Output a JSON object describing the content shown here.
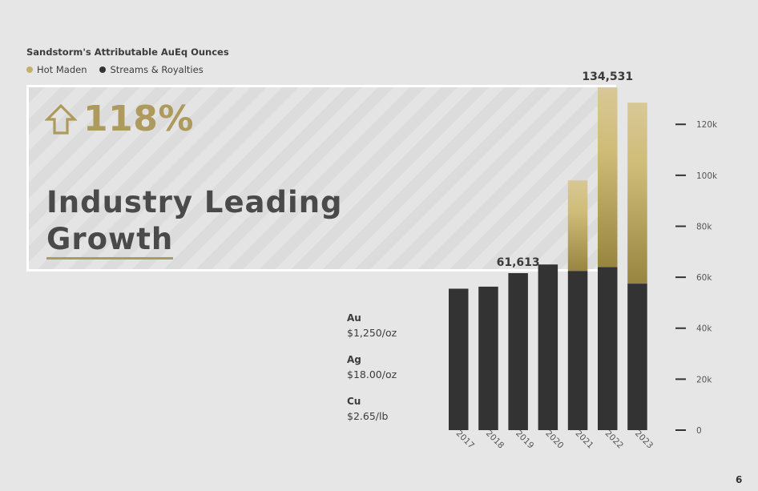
{
  "title": "Sandstorm's Attributable AuEq Ounces",
  "legend": {
    "hot_maden": "Hot Maden",
    "streams": "Streams & Royalties"
  },
  "hero": {
    "growth": "118%",
    "line1": "Industry Leading",
    "line2": "Growth"
  },
  "prices": [
    {
      "metal": "Au",
      "price": "$1,250/oz"
    },
    {
      "metal": "Ag",
      "price": "$18.00/oz"
    },
    {
      "metal": "Cu",
      "price": "$2.65/lb"
    }
  ],
  "page_number": "6",
  "colors": {
    "gold": "#ad9a5c",
    "dark": "#333333",
    "background": "#e6e6e6"
  },
  "chart_data": {
    "type": "bar",
    "stacked": true,
    "categories": [
      "2017",
      "2018",
      "2019",
      "2020",
      "2021",
      "2022",
      "2023"
    ],
    "series": [
      {
        "name": "Streams & Royalties",
        "values": [
          55500,
          56300,
          61613,
          65000,
          62500,
          64000,
          57500
        ]
      },
      {
        "name": "Hot Maden",
        "values": [
          0,
          0,
          0,
          0,
          35500,
          70531,
          71000
        ]
      }
    ],
    "data_labels": [
      {
        "category": "2019",
        "text": "61,613"
      },
      {
        "category": "2022",
        "text": "134,531"
      }
    ],
    "yticks": [
      0,
      20000,
      40000,
      60000,
      80000,
      100000,
      120000
    ],
    "ytick_labels": [
      "0",
      "20k",
      "40k",
      "60k",
      "80k",
      "100k",
      "120k"
    ],
    "ylim": [
      0,
      134531
    ],
    "axis_side": "right"
  }
}
